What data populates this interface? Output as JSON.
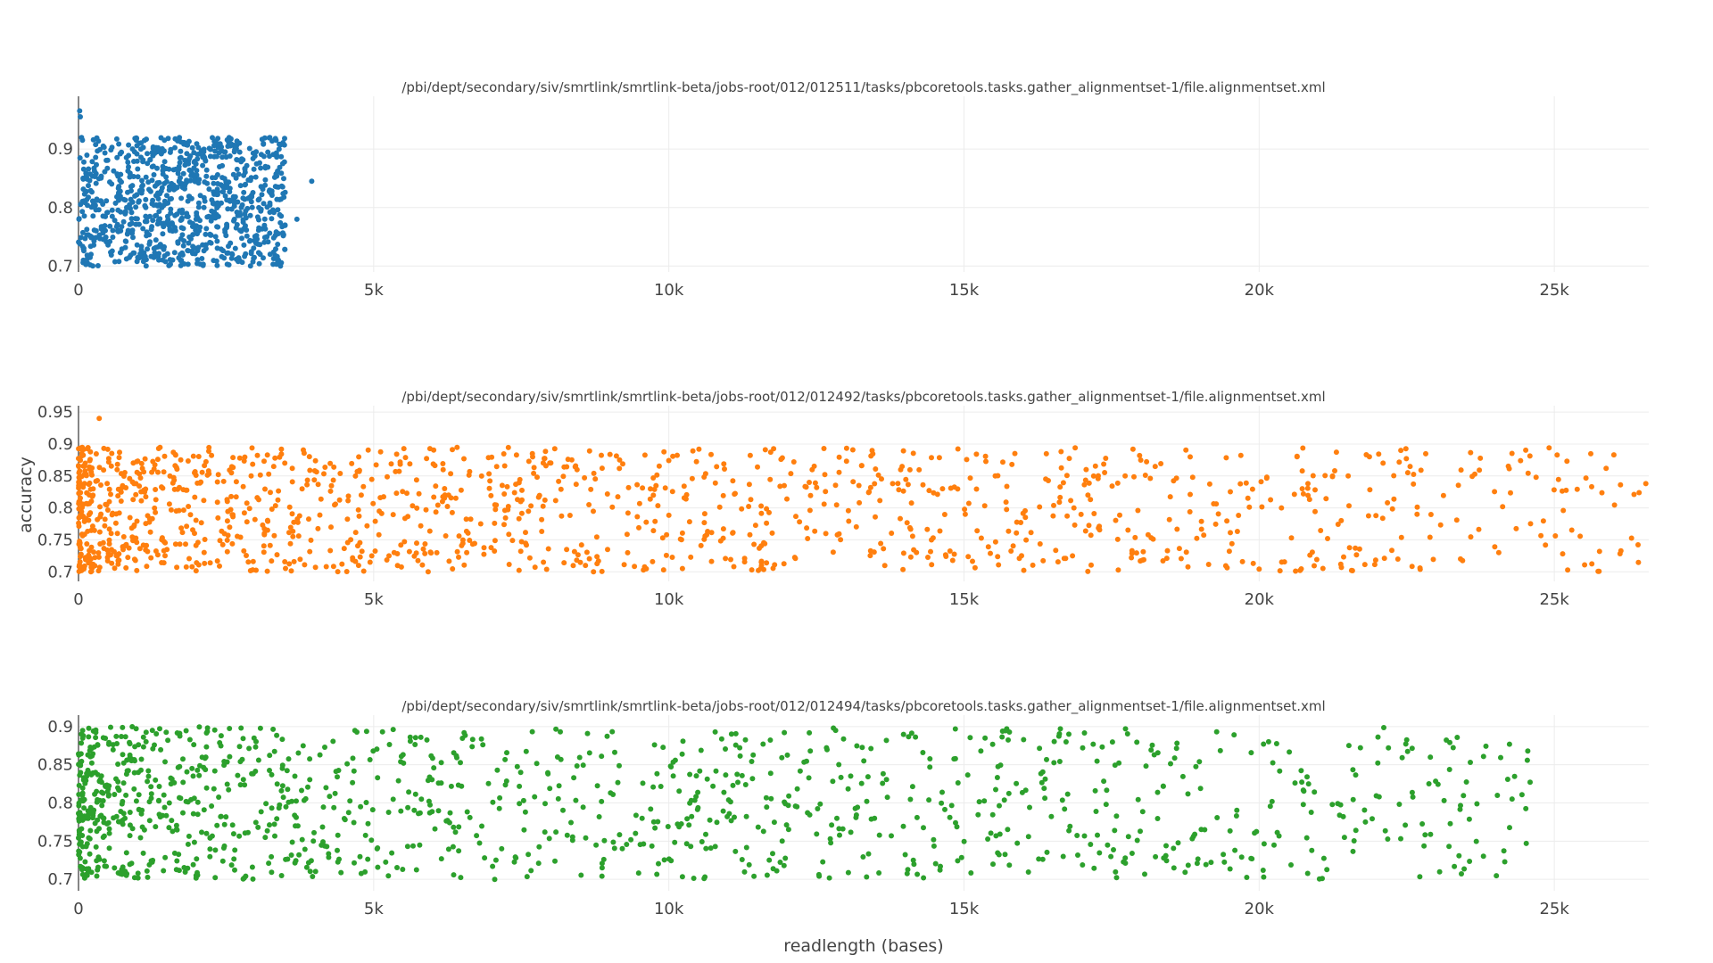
{
  "figure": {
    "xlabel": "readlength (bases)",
    "ylabel": "accuracy"
  },
  "chart_data": [
    {
      "type": "scatter",
      "title": "/pbi/dept/secondary/siv/smrtlink/smrtlink-beta/jobs-root/012/012511/tasks/pbcoretools.tasks.gather_alignmentset-1/file.alignmentset.xml",
      "color": "#1f77b4",
      "xlim": [
        0,
        26600
      ],
      "ylim": [
        0.69,
        0.99
      ],
      "xticks": [
        "0",
        "5k",
        "10k",
        "15k",
        "20k",
        "25k"
      ],
      "yticks": [
        "0.7",
        "0.8",
        "0.9"
      ],
      "grid": true,
      "points": {
        "xmin": 0,
        "xmax": 3500,
        "ymin": 0.7,
        "ymax": 0.92,
        "n": 900,
        "seed": 11,
        "extra": [
          [
            3950,
            0.845
          ],
          [
            20,
            0.965
          ],
          [
            30,
            0.955
          ],
          [
            3700,
            0.78
          ]
        ]
      }
    },
    {
      "type": "scatter",
      "title": "/pbi/dept/secondary/siv/smrtlink/smrtlink-beta/jobs-root/012/012492/tasks/pbcoretools.tasks.gather_alignmentset-1/file.alignmentset.xml",
      "color": "#ff7f0e",
      "xlim": [
        0,
        26600
      ],
      "ylim": [
        0.685,
        0.96
      ],
      "xticks": [
        "0",
        "5k",
        "10k",
        "15k",
        "20k",
        "25k"
      ],
      "yticks": [
        "0.7",
        "0.75",
        "0.8",
        "0.85",
        "0.9",
        "0.95"
      ],
      "grid": true,
      "points": {
        "xmin": 0,
        "xmax": 26500,
        "ymin": 0.7,
        "ymax": 0.895,
        "n": 1300,
        "seed": 23,
        "extra": [
          [
            350,
            0.94
          ],
          [
            22400,
            0.89
          ],
          [
            26550,
            0.838
          ],
          [
            19900,
            0.713
          ],
          [
            14100,
            0.723
          ],
          [
            24850,
            0.742
          ]
        ]
      }
    },
    {
      "type": "scatter",
      "title": "/pbi/dept/secondary/siv/smrtlink/smrtlink-beta/jobs-root/012/012494/tasks/pbcoretools.tasks.gather_alignmentset-1/file.alignmentset.xml",
      "color": "#2ca02c",
      "xlim": [
        0,
        26600
      ],
      "ylim": [
        0.685,
        0.915
      ],
      "xticks": [
        "0",
        "5k",
        "10k",
        "15k",
        "20k",
        "25k"
      ],
      "yticks": [
        "0.7",
        "0.75",
        "0.8",
        "0.85",
        "0.9"
      ],
      "grid": true,
      "points": {
        "xmin": 0,
        "xmax": 24600,
        "ymin": 0.7,
        "ymax": 0.9,
        "n": 1200,
        "seed": 37,
        "extra": [
          [
            24550,
            0.868
          ],
          [
            21800,
            0.775
          ],
          [
            22900,
            0.86
          ],
          [
            14600,
            0.717
          ],
          [
            7050,
            0.7
          ]
        ]
      }
    }
  ]
}
